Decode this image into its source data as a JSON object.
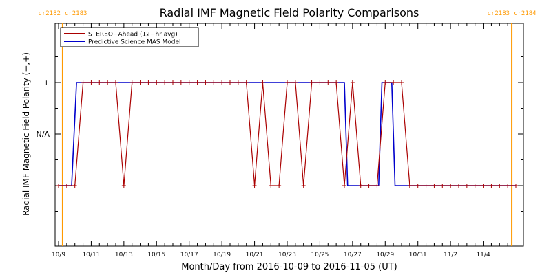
{
  "chart_data": {
    "type": "line",
    "title": "Radial IMF Magnetic Field Polarity Comparisons",
    "xlabel": "Month/Day from 2016-10-09 to 2016-11-05 (UT)",
    "ylabel": "Radial IMF Magnetic Field Polarity (−,+)",
    "x_start": "2016-10-09",
    "x_end": "2016-11-05",
    "xlim_days": [
      0,
      28
    ],
    "ylim": [
      -1,
      1
    ],
    "x_ticks": [
      {
        "day": 0,
        "label": "10/9"
      },
      {
        "day": 2,
        "label": "10/11"
      },
      {
        "day": 4,
        "label": "10/13"
      },
      {
        "day": 6,
        "label": "10/15"
      },
      {
        "day": 8,
        "label": "10/17"
      },
      {
        "day": 10,
        "label": "10/19"
      },
      {
        "day": 12,
        "label": "10/21"
      },
      {
        "day": 14,
        "label": "10/23"
      },
      {
        "day": 16,
        "label": "10/25"
      },
      {
        "day": 18,
        "label": "10/27"
      },
      {
        "day": 20,
        "label": "10/29"
      },
      {
        "day": 22,
        "label": "10/31"
      },
      {
        "day": 24,
        "label": "11/2"
      },
      {
        "day": 26,
        "label": "11/4"
      }
    ],
    "y_ticks": [
      {
        "value": 0.5,
        "label": "+"
      },
      {
        "value": 0,
        "label": "N/A"
      },
      {
        "value": -0.5,
        "label": "−"
      }
    ],
    "carrington": [
      {
        "day": 0.25,
        "left": "cr2182",
        "right": "cr2183"
      },
      {
        "day": 27.75,
        "left": "cr2183",
        "right": "cr2184"
      }
    ],
    "legend": {
      "placement": "top-left",
      "entries": [
        {
          "label": "STEREO−Ahead (12−hr avg)",
          "color": "#aa0000"
        },
        {
          "label": "Predictive Science MAS Model",
          "color": "#0000cc"
        }
      ]
    },
    "series": [
      {
        "name": "STEREO−Ahead (12−hr avg)",
        "color": "#aa0000",
        "marker": "plus",
        "x": [
          0,
          0.5,
          1,
          1.5,
          2,
          2.5,
          3,
          3.5,
          4,
          4.5,
          5,
          5.5,
          6,
          6.5,
          7,
          7.5,
          8,
          8.5,
          9,
          9.5,
          10,
          10.5,
          11,
          11.5,
          12,
          12.5,
          13,
          13.5,
          14,
          14.5,
          15,
          15.5,
          16,
          16.5,
          17,
          17.5,
          18,
          18.5,
          19,
          19.5,
          20,
          20.5,
          21,
          21.5,
          22,
          22.5,
          23,
          23.5,
          24,
          24.5,
          25,
          25.5,
          26,
          26.5,
          27,
          27.5,
          28
        ],
        "y": [
          -0.5,
          -0.5,
          -0.5,
          0.5,
          0.5,
          0.5,
          0.5,
          0.5,
          -0.5,
          0.5,
          0.5,
          0.5,
          0.5,
          0.5,
          0.5,
          0.5,
          0.5,
          0.5,
          0.5,
          0.5,
          0.5,
          0.5,
          0.5,
          0.5,
          -0.5,
          0.5,
          -0.5,
          -0.5,
          0.5,
          0.5,
          -0.5,
          0.5,
          0.5,
          0.5,
          0.5,
          -0.5,
          0.5,
          -0.5,
          -0.5,
          -0.5,
          0.5,
          0.5,
          0.5,
          -0.5,
          -0.5,
          -0.5,
          -0.5,
          -0.5,
          -0.5,
          -0.5,
          -0.5,
          -0.5,
          -0.5,
          -0.5,
          -0.5,
          -0.5,
          -0.5
        ]
      },
      {
        "name": "Predictive Science MAS Model",
        "color": "#0000cc",
        "marker": "none",
        "x": [
          0,
          0.8,
          1.1,
          17.5,
          17.7,
          19.6,
          19.8,
          20.4,
          20.6,
          28
        ],
        "y": [
          -0.5,
          -0.5,
          0.5,
          0.5,
          -0.5,
          -0.5,
          0.5,
          0.5,
          -0.5,
          -0.5
        ]
      }
    ],
    "grid": false
  }
}
